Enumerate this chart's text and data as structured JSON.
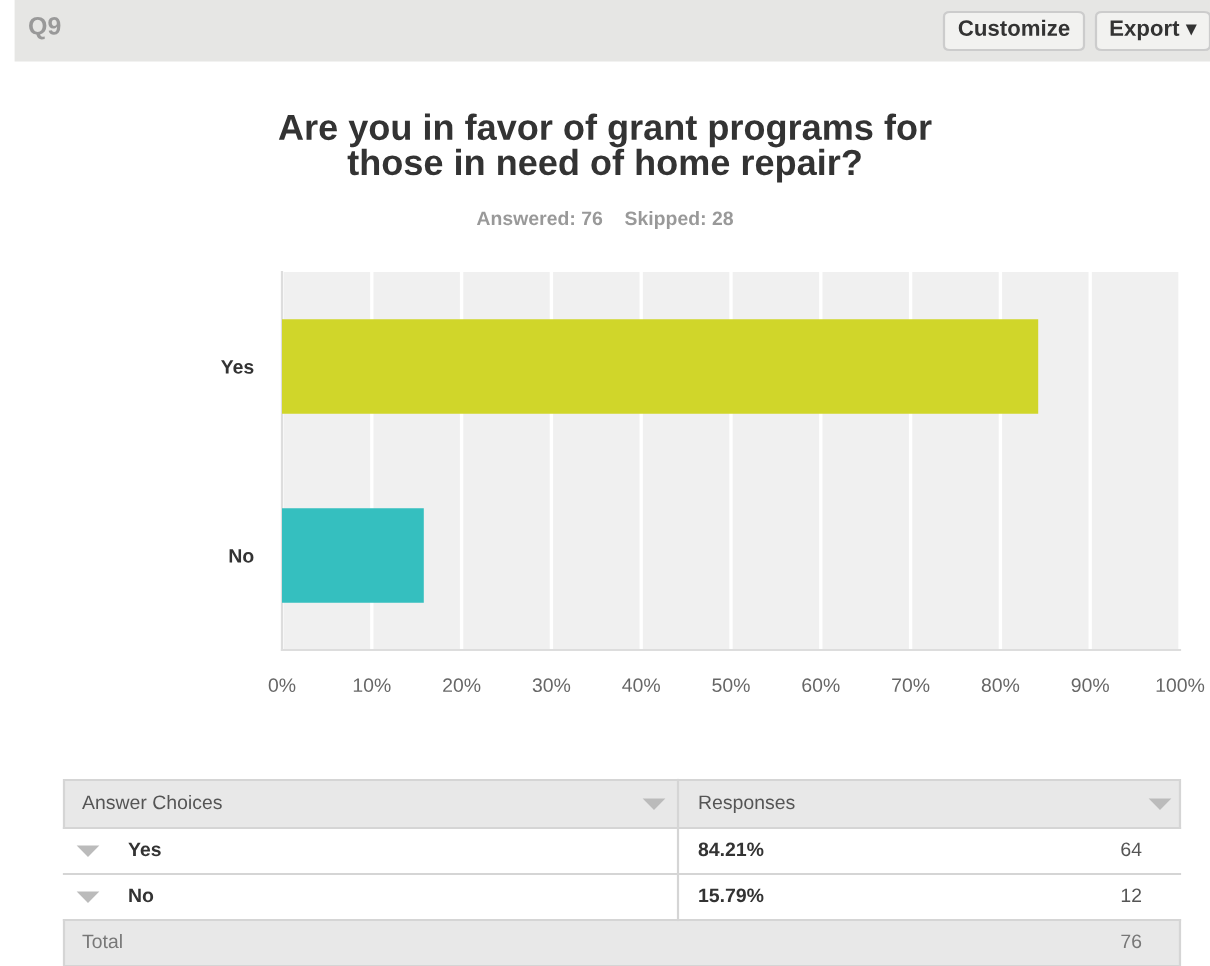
{
  "chart_data": {
    "type": "bar",
    "orientation": "horizontal",
    "title": "Are you in favor of grant programs for\nthose in need of home repair?",
    "subtitle": "Answered: 76    Skipped: 28",
    "categories": [
      "Yes",
      "No"
    ],
    "values": [
      84.21,
      15.79
    ],
    "colors": [
      "#d0d62a",
      "#35bfbf"
    ],
    "xlim": [
      0,
      100
    ],
    "xticks": [
      {
        "value": 0,
        "label": "0%"
      },
      {
        "value": 10,
        "label": "10%"
      },
      {
        "value": 20,
        "label": "20%"
      },
      {
        "value": 30,
        "label": "30%"
      },
      {
        "value": 40,
        "label": "40%"
      },
      {
        "value": 50,
        "label": "50%"
      },
      {
        "value": 60,
        "label": "60%"
      },
      {
        "value": 70,
        "label": "70%"
      },
      {
        "value": 80,
        "label": "80%"
      },
      {
        "value": 90,
        "label": "90%"
      },
      {
        "value": 100,
        "label": "100%"
      }
    ],
    "grid": "x",
    "annotations": [
      "Q9",
      "Customize",
      "Export ▾",
      "Answer Choices",
      "Responses",
      "64",
      "12",
      "Total",
      "76",
      "84.21%",
      "15.79%"
    ]
  }
}
